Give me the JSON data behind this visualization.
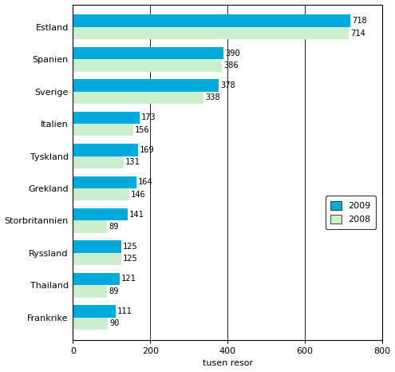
{
  "categories": [
    "Frankrike",
    "Thailand",
    "Ryssland",
    "Storbritannien",
    "Grekland",
    "Tyskland",
    "Italien",
    "Sverige",
    "Spanien",
    "Estland"
  ],
  "values_2009": [
    111,
    121,
    125,
    141,
    164,
    169,
    173,
    378,
    390,
    718
  ],
  "values_2008": [
    90,
    89,
    125,
    89,
    146,
    131,
    156,
    338,
    386,
    714
  ],
  "color_2009": "#00AADD",
  "color_2008": "#CCEECC",
  "xlabel": "tusen resor",
  "xlim": [
    0,
    800
  ],
  "xticks": [
    0,
    200,
    400,
    600,
    800
  ],
  "legend_labels": [
    "2009",
    "2008"
  ],
  "bar_height": 0.38,
  "label_fontsize": 7.5,
  "tick_fontsize": 8,
  "bg_color": "#ffffff"
}
